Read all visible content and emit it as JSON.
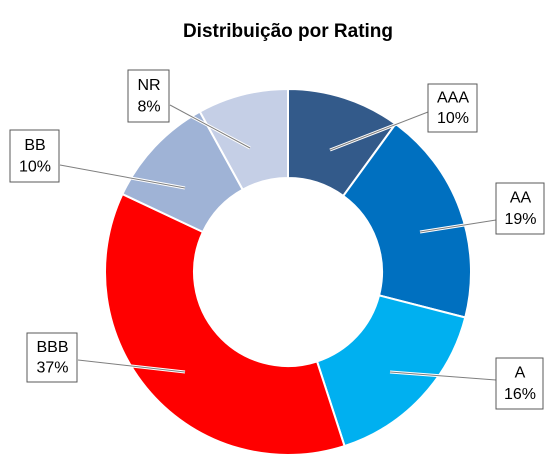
{
  "chart_data": {
    "type": "donut",
    "title": "Distribuição por Rating",
    "categories": [
      "AAA",
      "AA",
      "A",
      "BBB",
      "BB",
      "NR"
    ],
    "values": [
      10,
      19,
      16,
      37,
      10,
      8
    ],
    "value_labels": [
      "10%",
      "19%",
      "16%",
      "37%",
      "10%",
      "8%"
    ],
    "colors": [
      "#335a8a",
      "#0070c0",
      "#00b0f0",
      "#ff0000",
      "#9fb3d6",
      "#c5cfe6"
    ]
  }
}
